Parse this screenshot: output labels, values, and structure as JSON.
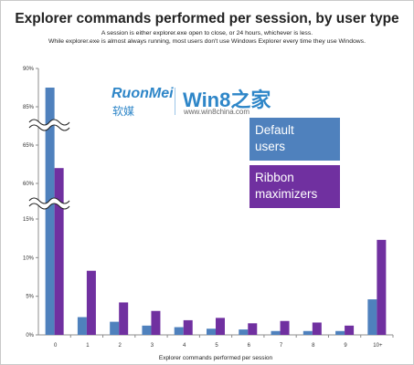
{
  "header": {
    "title": "Explorer commands performed per session, by user type",
    "subtitle1": "A session is either explorer.exe open to close, or 24 hours, whichever is less.",
    "subtitle2": "While explorer.exe is almost always running, most users don't use Windows Explorer every time they use Windows."
  },
  "watermark": {
    "brand_latin": "RuonMei",
    "brand_cn": "软媒",
    "win8": "Win8之家",
    "url": "www.win8china.com"
  },
  "colors": {
    "default_users": "#4f81bd",
    "ribbon_maximizers": "#7030a0"
  },
  "chart_data": {
    "type": "bar",
    "title": "Explorer commands performed per session, by user type",
    "xlabel": "Explorer commands performed per session",
    "ylabel": "",
    "categories": [
      "0",
      "1",
      "2",
      "3",
      "4",
      "5",
      "6",
      "7",
      "8",
      "9",
      "10+"
    ],
    "series": [
      {
        "name": "Default users",
        "values": [
          87.5,
          2.3,
          1.7,
          1.2,
          1.0,
          0.8,
          0.7,
          0.5,
          0.5,
          0.5,
          4.6
        ]
      },
      {
        "name": "Ribbon maximizers",
        "values": [
          62,
          8.3,
          4.2,
          3.1,
          1.9,
          2.2,
          1.5,
          1.8,
          1.6,
          1.2,
          12.3
        ]
      }
    ],
    "y_axis_note": "broken axis with three segments",
    "y_segments": [
      {
        "range": [
          0,
          15
        ],
        "ticks": [
          "0%",
          "5%",
          "10%",
          "15%"
        ],
        "tick_values": [
          0,
          5,
          10,
          15
        ]
      },
      {
        "range": [
          60,
          65
        ],
        "ticks": [
          "60%",
          "65%"
        ],
        "tick_values": [
          60,
          65
        ]
      },
      {
        "range": [
          85,
          90
        ],
        "ticks": [
          "85%",
          "90%"
        ],
        "tick_values": [
          85,
          90
        ]
      }
    ],
    "grid": false,
    "legend_position": "right"
  }
}
